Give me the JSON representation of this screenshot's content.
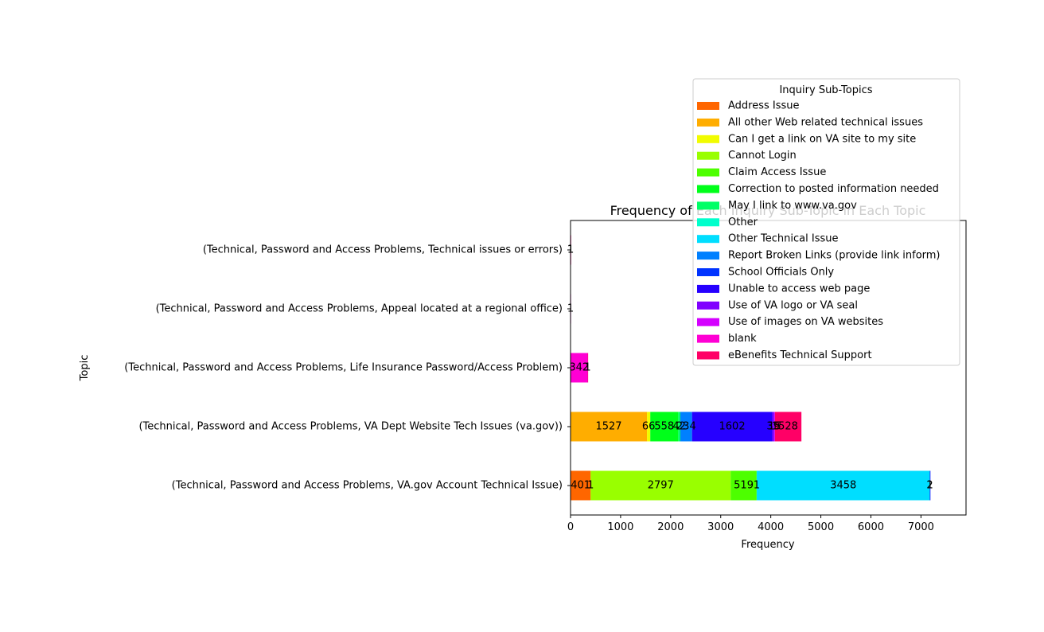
{
  "chart_data": {
    "type": "bar",
    "orientation": "horizontal",
    "stacked": true,
    "title": "Frequency of Each Inquiry Sub-Topic in Each Topic",
    "xlabel": "Frequency",
    "ylabel": "Topic",
    "xlim": [
      0,
      7900
    ],
    "xticks": [
      0,
      1000,
      2000,
      3000,
      4000,
      5000,
      6000,
      7000
    ],
    "grid": false,
    "legend": {
      "title": "Inquiry Sub-Topics",
      "placement": "upper right, overlapping plot"
    },
    "categories": [
      "(Technical, Password and Access Problems, VA.gov Account Technical Issue)",
      "(Technical, Password and Access Problems, VA Dept Website Tech Issues (va.gov))",
      "(Technical, Password and Access Problems, Life Insurance Password/Access Problem)",
      "(Technical, Password and Access Problems, Appeal located at a regional office)",
      "(Technical, Password and Access Problems, Technical issues or errors)"
    ],
    "series": [
      {
        "name": "Address Issue",
        "color": "#ff6600",
        "values": [
          401,
          0,
          0,
          0,
          0
        ]
      },
      {
        "name": "All other Web related technical issues",
        "color": "#ffad00",
        "values": [
          1,
          1527,
          0,
          0,
          0
        ]
      },
      {
        "name": "Can I get a link on VA site to my site",
        "color": "#f1fc00",
        "values": [
          0,
          66,
          0,
          0,
          0
        ]
      },
      {
        "name": "Cannot Login",
        "color": "#99ff00",
        "values": [
          2797,
          0,
          0,
          0,
          0
        ]
      },
      {
        "name": "Claim Access Issue",
        "color": "#4dff00",
        "values": [
          519,
          0,
          0,
          0,
          0
        ]
      },
      {
        "name": "Correction to posted information needed",
        "color": "#00ff1a",
        "values": [
          0,
          558,
          0,
          0,
          0
        ]
      },
      {
        "name": "May I link to www.va.gov",
        "color": "#00ff66",
        "values": [
          0,
          42,
          0,
          0,
          0
        ]
      },
      {
        "name": "Other",
        "color": "#00ffcc",
        "values": [
          1,
          0,
          0,
          0,
          0
        ]
      },
      {
        "name": "Other Technical Issue",
        "color": "#00deff",
        "values": [
          3458,
          0,
          0,
          0,
          0
        ]
      },
      {
        "name": "Report Broken Links (provide link inform)",
        "color": "#0080ff",
        "values": [
          0,
          234,
          0,
          0,
          0
        ]
      },
      {
        "name": "School Officials Only",
        "color": "#0033ff",
        "values": [
          2,
          0,
          0,
          0,
          0
        ]
      },
      {
        "name": "Unable to access web page",
        "color": "#2600ff",
        "values": [
          1,
          1602,
          0,
          0,
          0
        ]
      },
      {
        "name": "Use of VA logo or VA seal",
        "color": "#8000ff",
        "values": [
          0,
          39,
          0,
          0,
          0
        ]
      },
      {
        "name": "Use of images on VA websites",
        "color": "#d400ff",
        "values": [
          0,
          15,
          0,
          0,
          0
        ]
      },
      {
        "name": "blank",
        "color": "#ff00d4",
        "values": [
          0,
          1,
          342,
          1,
          1
        ]
      },
      {
        "name": "eBenefits Technical Support",
        "color": "#ff0066",
        "values": [
          0,
          528,
          1,
          0,
          1
        ]
      }
    ],
    "data_labels": [
      {
        "cat": 0,
        "series": 0,
        "text": "401"
      },
      {
        "cat": 0,
        "series": 1,
        "text": "1"
      },
      {
        "cat": 0,
        "series": 3,
        "text": "2797"
      },
      {
        "cat": 0,
        "series": 4,
        "text": "519"
      },
      {
        "cat": 0,
        "series": 7,
        "text": "1"
      },
      {
        "cat": 0,
        "series": 8,
        "text": "3458"
      },
      {
        "cat": 0,
        "series": 10,
        "text": "2"
      },
      {
        "cat": 0,
        "series": 11,
        "text": "1"
      },
      {
        "cat": 1,
        "series": 14,
        "text": "1",
        "place": "start"
      },
      {
        "cat": 1,
        "series": 1,
        "text": "1527"
      },
      {
        "cat": 1,
        "series": 2,
        "text": "66"
      },
      {
        "cat": 1,
        "series": 5,
        "text": "558"
      },
      {
        "cat": 1,
        "series": 6,
        "text": "42"
      },
      {
        "cat": 1,
        "series": 9,
        "text": "234"
      },
      {
        "cat": 1,
        "series": 11,
        "text": "1602"
      },
      {
        "cat": 1,
        "series": 12,
        "text": "39"
      },
      {
        "cat": 1,
        "series": 13,
        "text": "15"
      },
      {
        "cat": 1,
        "series": 15,
        "text": "528"
      },
      {
        "cat": 2,
        "series": 15,
        "text": "1",
        "place": "start"
      },
      {
        "cat": 2,
        "series": 14,
        "text": "342"
      },
      {
        "cat": 3,
        "series": 14,
        "text": "1"
      },
      {
        "cat": 4,
        "series": 14,
        "text": "1"
      },
      {
        "cat": 4,
        "series": 15,
        "text": "1"
      }
    ]
  }
}
